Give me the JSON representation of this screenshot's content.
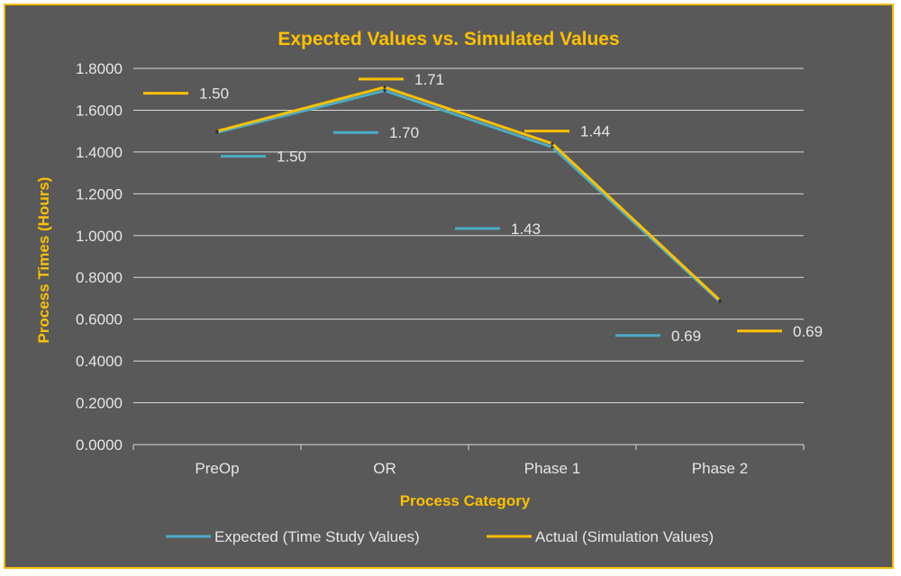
{
  "chart_data": {
    "type": "line",
    "title": "Expected Values vs. Simulated Values",
    "xlabel": "Process Category",
    "ylabel": "Process Times (Hours)",
    "categories": [
      "PreOp",
      "OR",
      "Phase 1",
      "Phase 2"
    ],
    "ylim": [
      0,
      1.8
    ],
    "yticks": [
      "0.0000",
      "0.2000",
      "0.4000",
      "0.6000",
      "0.8000",
      "1.0000",
      "1.2000",
      "1.4000",
      "1.6000",
      "1.8000"
    ],
    "grid": true,
    "legend_position": "bottom",
    "series": [
      {
        "name": "Expected (Time Study Values)",
        "color": "#4bacc6",
        "values": [
          1.5,
          1.7,
          1.43,
          0.69
        ],
        "labels": [
          "1.50",
          "1.70",
          "1.43",
          "0.69"
        ]
      },
      {
        "name": "Actual (Simulation Values)",
        "color": "#ffc000",
        "values": [
          1.5,
          1.71,
          1.44,
          0.69
        ],
        "labels": [
          "1.50",
          "1.71",
          "1.44",
          "0.69"
        ]
      }
    ]
  },
  "colors": {
    "background": "#595959",
    "border": "#f5b800",
    "gridline": "#d9d9d9",
    "accent_text": "#ffc000",
    "text": "#e6e6e6"
  }
}
